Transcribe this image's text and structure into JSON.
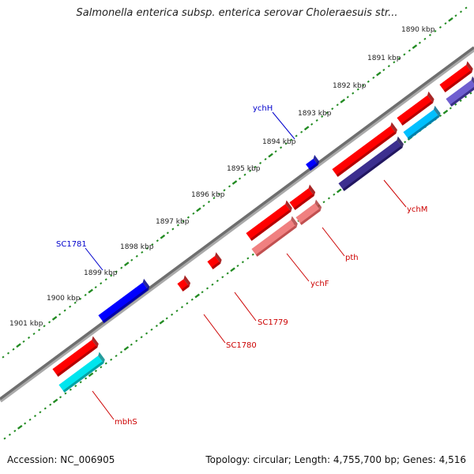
{
  "title": "Salmonella enterica subsp. enterica serovar Choleraesuis str...",
  "footer": {
    "accession": "Accession: NC_006905",
    "summary": "Topology: circular; Length: 4,755,700 bp; Genes: 4,516"
  },
  "scale_labels": [
    "1890 kbp",
    "1891 kbp",
    "1892 kbp",
    "1893 kbp",
    "1894 kbp",
    "1895 kbp",
    "1896 kbp",
    "1897 kbp",
    "1898 kbp",
    "1899 kbp",
    "1900 kbp",
    "1901 kbp"
  ],
  "gene_labels": [
    "ychH",
    "SC1781",
    "ychM",
    "pth",
    "ychF",
    "SC1779",
    "SC1780",
    "mbhS"
  ],
  "colors": {
    "forward_cds": "#ff0000",
    "reverse_cds": "#ff0000",
    "forward_gene": "#0000ff",
    "rrna_pink": "#f08080",
    "cyan_feature": "#00e5ee",
    "navy_feature": "#3c2f8f",
    "backbone": "#777777",
    "tick_green": "#228b22",
    "label_red": "#cc0000",
    "label_blue": "#0000cc"
  }
}
